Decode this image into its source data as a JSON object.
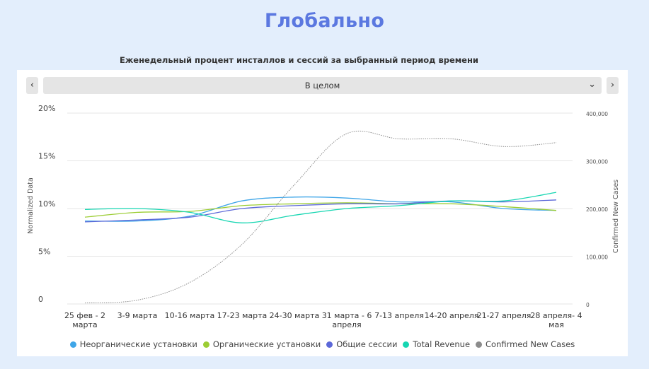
{
  "page": {
    "title": "Глобально"
  },
  "chart_header": {
    "title": "Еженедельный процент инсталлов и сессий за выбранный период времени"
  },
  "filter": {
    "prev_label": "‹",
    "next_label": "›",
    "selected": "В целом",
    "chevron": "⌄"
  },
  "colors": {
    "background": "#e3eefc",
    "title": "#5b78e0",
    "grid": "#e6e6e6"
  },
  "chart_data": {
    "type": "line",
    "categories": [
      "25 фев - 2 марта",
      "3-9 марта",
      "10-16 марта",
      "17-23 марта",
      "24-30 марта",
      "31 марта - 6 апреля",
      "7-13 апреля",
      "14-20 апреля",
      "21-27 апреля",
      "28 апреля- 4 мая"
    ],
    "category_lines": [
      [
        "25 фев - 2",
        "марта"
      ],
      [
        "3-9 марта"
      ],
      [
        "10-16 марта"
      ],
      [
        "17-23 марта"
      ],
      [
        "24-30 марта"
      ],
      [
        "31 марта - 6",
        "апреля"
      ],
      [
        "7-13 апреля"
      ],
      [
        "14-20 апреля"
      ],
      [
        "21-27 апреля"
      ],
      [
        "28 апреля- 4",
        "мая"
      ]
    ],
    "ylabel": "Normalized Data",
    "y2label": "Confirmed New Cases",
    "ylim": [
      0,
      20
    ],
    "y2lim": [
      0,
      400000
    ],
    "yticks": [
      0,
      5,
      10,
      15,
      20
    ],
    "ytick_labels": [
      "0",
      "5%",
      "10%",
      "15%",
      "20%"
    ],
    "y2ticks": [
      0,
      100000,
      200000,
      300000,
      400000
    ],
    "y2tick_labels": [
      "0",
      "100,000",
      "200,000",
      "300,000",
      "400,000"
    ],
    "grid": true,
    "legend_position": "bottom",
    "series": [
      {
        "name": "Неорганические установки",
        "color": "#3fa6e8",
        "axis": "left",
        "style": "solid",
        "values": [
          8.7,
          8.7,
          9.2,
          10.8,
          11.2,
          11.1,
          10.7,
          10.7,
          10.0,
          9.8
        ]
      },
      {
        "name": "Органические установки",
        "color": "#9ccd34",
        "axis": "left",
        "style": "solid",
        "values": [
          9.1,
          9.6,
          9.7,
          10.3,
          10.5,
          10.6,
          10.5,
          10.5,
          10.2,
          9.8
        ]
      },
      {
        "name": "Общие сессии",
        "color": "#5c68d8",
        "axis": "left",
        "style": "solid",
        "values": [
          8.6,
          8.8,
          9.1,
          10.0,
          10.3,
          10.5,
          10.5,
          10.8,
          10.7,
          10.9
        ]
      },
      {
        "name": "Total Revenue",
        "color": "#17d6b2",
        "axis": "left",
        "style": "solid",
        "values": [
          9.9,
          10.0,
          9.6,
          8.5,
          9.3,
          10.0,
          10.3,
          10.8,
          10.8,
          11.7
        ]
      },
      {
        "name": "Confirmed New Cases",
        "color": "#8c8c8c",
        "axis": "right",
        "style": "dotted",
        "values": [
          2000,
          8000,
          45000,
          125000,
          250000,
          357000,
          346000,
          346000,
          330000,
          338000
        ]
      }
    ]
  }
}
